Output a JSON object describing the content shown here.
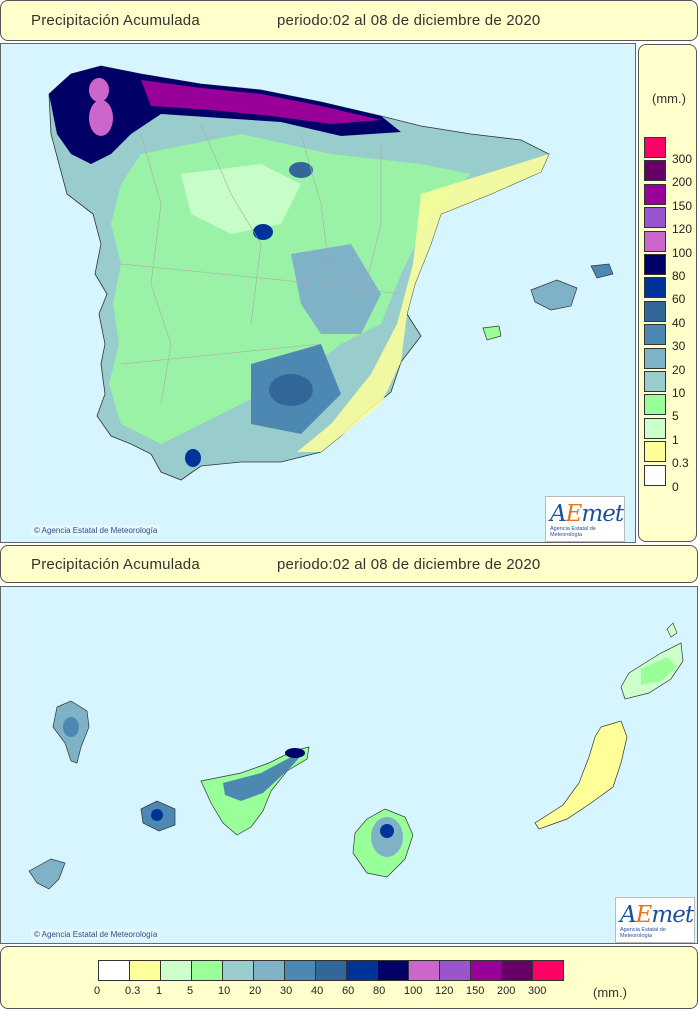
{
  "top_banner": {
    "title": "Precipitación Acumulada",
    "period": "periodo:02 al 08 de diciembre de 2020"
  },
  "middle_banner": {
    "title": "Precipitación Acumulada",
    "period": "periodo:02 al 08 de diciembre de 2020"
  },
  "peninsula_map": {
    "credit": "© Agencia Estatal de Meteorología"
  },
  "canary_map": {
    "credit": "© Agencia Estatal de Meteorología"
  },
  "logo": {
    "brand_prefix": "A",
    "brand_e": "E",
    "brand_suffix": "met",
    "subtitle": "Agencia Estatal de Meteorología"
  },
  "legend": {
    "unit": "(mm.)",
    "thresholds": [
      "0",
      "0.3",
      "1",
      "5",
      "10",
      "20",
      "30",
      "40",
      "60",
      "80",
      "100",
      "120",
      "150",
      "200",
      "300"
    ],
    "colors": [
      "#ffffff",
      "#ffff99",
      "#ccffcc",
      "#99ff99",
      "#99cccc",
      "#7fb2c7",
      "#4d88b3",
      "#336699",
      "#003399",
      "#000066",
      "#cc66cc",
      "#9955cc",
      "#990099",
      "#660066",
      "#ff0066"
    ]
  }
}
